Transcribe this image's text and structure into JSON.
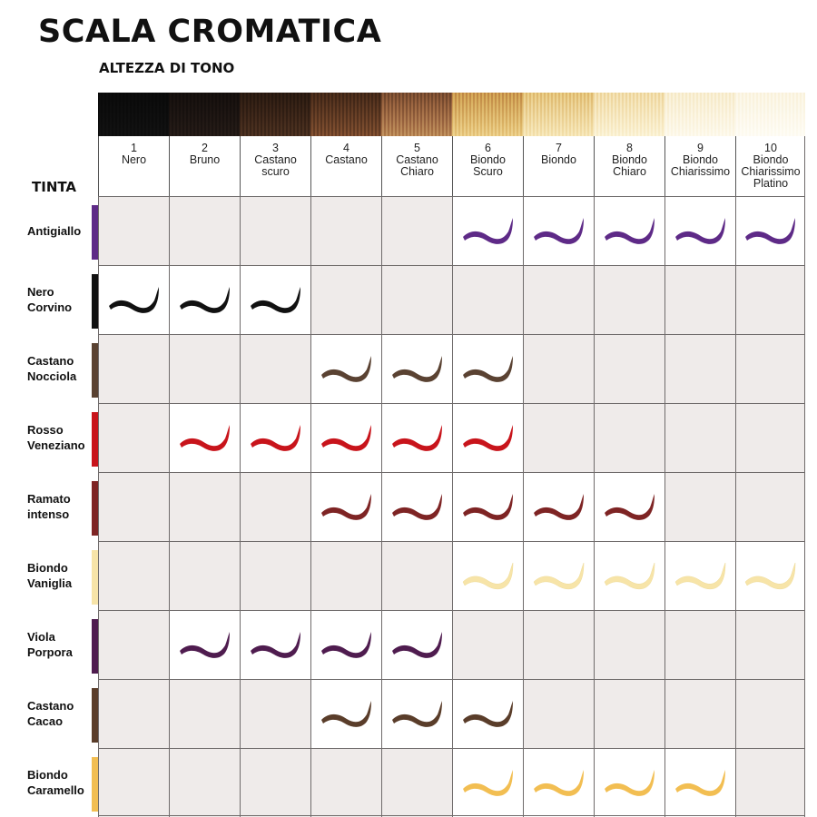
{
  "title": "SCALA CROMATICA",
  "subtitle": "ALTEZZA DI TONO",
  "row_header": "TINTA",
  "tones": [
    {
      "num": "1",
      "lines": [
        "Nero"
      ],
      "swatch": [
        "#1f1f1f",
        "#333333"
      ]
    },
    {
      "num": "2",
      "lines": [
        "Bruno"
      ],
      "swatch": [
        "#2c2522",
        "#4a403b"
      ]
    },
    {
      "num": "3",
      "lines": [
        "Castano",
        "scuro"
      ],
      "swatch": [
        "#3e3026",
        "#6b5646"
      ]
    },
    {
      "num": "4",
      "lines": [
        "Castano"
      ],
      "swatch": [
        "#4f3c2e",
        "#8a6d55"
      ]
    },
    {
      "num": "5",
      "lines": [
        "Castano",
        "Chiaro"
      ],
      "swatch": [
        "#6b5341",
        "#b09276"
      ]
    },
    {
      "num": "6",
      "lines": [
        "Biondo",
        "Scuro"
      ],
      "swatch": [
        "#9c7a55",
        "#d8bd90"
      ]
    },
    {
      "num": "7",
      "lines": [
        "Biondo"
      ],
      "swatch": [
        "#b7976d",
        "#e6d2ac"
      ]
    },
    {
      "num": "8",
      "lines": [
        "Biondo",
        "Chiaro"
      ],
      "swatch": [
        "#c9ad84",
        "#efe0c2"
      ]
    },
    {
      "num": "9",
      "lines": [
        "Biondo",
        "Chiarissimo"
      ],
      "swatch": [
        "#d8c4a2",
        "#f4ead7"
      ]
    },
    {
      "num": "10",
      "lines": [
        "Biondo",
        "Chiarissimo",
        "Platino"
      ],
      "swatch": [
        "#e0d0b4",
        "#f7f0e2"
      ]
    }
  ],
  "shades": [
    {
      "label": [
        "Antigiallo"
      ],
      "color": "#5e2a87",
      "tones": [
        6,
        7,
        8,
        9,
        10
      ]
    },
    {
      "label": [
        "Nero",
        "Corvino"
      ],
      "color": "#111111",
      "tones": [
        1,
        2,
        3
      ]
    },
    {
      "label": [
        "Castano",
        "Nocciola"
      ],
      "color": "#5a4232",
      "tones": [
        4,
        5,
        6
      ]
    },
    {
      "label": [
        "Rosso",
        "Veneziano"
      ],
      "color": "#c8141b",
      "tones": [
        2,
        3,
        4,
        5,
        6
      ]
    },
    {
      "label": [
        "Ramato",
        "intenso"
      ],
      "color": "#7e2424",
      "tones": [
        4,
        5,
        6,
        7,
        8
      ]
    },
    {
      "label": [
        "Biondo",
        "Vaniglia"
      ],
      "color": "#f7e4a8",
      "tones": [
        6,
        7,
        8,
        9,
        10
      ]
    },
    {
      "label": [
        "Viola",
        "Porpora"
      ],
      "color": "#4f1c4f",
      "tones": [
        2,
        3,
        4,
        5
      ]
    },
    {
      "label": [
        "Castano",
        "Cacao"
      ],
      "color": "#5a3d2a",
      "tones": [
        4,
        5,
        6
      ]
    },
    {
      "label": [
        "Biondo",
        "Caramello"
      ],
      "color": "#f2be52",
      "tones": [
        6,
        7,
        8,
        9
      ]
    }
  ]
}
